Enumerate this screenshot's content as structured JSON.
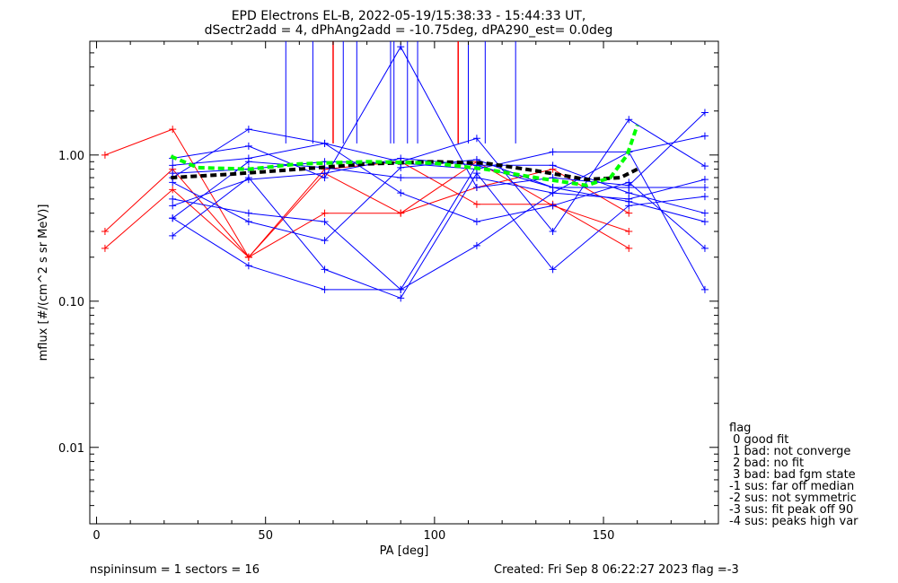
{
  "chart_data": {
    "type": "line",
    "title": "EPD Electrons EL-B, 2022-05-19/15:38:33 - 15:44:33 UT,",
    "subtitle": "dSectr2add = 4, dPhAng2add = -10.75deg, dPA290_est=   0.0deg",
    "xlabel": "PA [deg]",
    "ylabel": "mflux [#/(cm^2 s sr MeV)]",
    "xlim": [
      -2,
      184
    ],
    "ylim": [
      0.003,
      6
    ],
    "yscale": "log",
    "grid": false,
    "xticks": [
      0,
      50,
      100,
      150
    ],
    "xtick_labels": [
      "0",
      "50",
      "100",
      "150"
    ],
    "yticks": [
      0.01,
      0.1,
      1.0
    ],
    "ytick_labels": [
      "0.01",
      "0.10",
      "1.00"
    ],
    "colors": {
      "red": "#ff0000",
      "blue": "#0000ff",
      "black": "#000000",
      "green": "#00ff00"
    },
    "series": [
      {
        "color": "red",
        "x": [
          2.5,
          22.5,
          45,
          67.5,
          90,
          112.5,
          135,
          157.5
        ],
        "y": [
          1.0,
          1.5,
          0.2,
          0.75,
          0.4,
          0.6,
          0.8,
          0.4
        ]
      },
      {
        "color": "red",
        "x": [
          2.5,
          22.5,
          45,
          67.5,
          90,
          112.5,
          135,
          157.5
        ],
        "y": [
          0.3,
          0.8,
          0.2,
          0.4,
          0.4,
          0.9,
          0.45,
          0.3
        ]
      },
      {
        "color": "red",
        "x": [
          2.5,
          22.5,
          45,
          67.5,
          90,
          112.5,
          135,
          157.5
        ],
        "y": [
          0.23,
          0.58,
          0.2,
          0.8,
          0.9,
          0.46,
          0.46,
          0.23
        ]
      },
      {
        "color": "blue",
        "x": [
          22.5,
          45,
          67.5,
          90,
          112.5,
          135,
          157.5,
          180
        ],
        "y": [
          0.7,
          1.5,
          1.2,
          0.9,
          1.3,
          0.3,
          1.75,
          0.84
        ]
      },
      {
        "color": "blue",
        "x": [
          22.5,
          45,
          67.5,
          90,
          112.5,
          135,
          157.5,
          180
        ],
        "y": [
          0.95,
          1.15,
          0.7,
          5.5,
          0.6,
          0.7,
          0.62,
          1.95
        ]
      },
      {
        "color": "blue",
        "x": [
          22.5,
          45,
          67.5,
          90,
          112.5,
          135,
          157.5,
          180
        ],
        "y": [
          0.5,
          0.4,
          0.35,
          0.12,
          0.24,
          0.55,
          1.05,
          0.12
        ]
      },
      {
        "color": "blue",
        "x": [
          22.5,
          45,
          67.5,
          90,
          112.5,
          135,
          157.5,
          180
        ],
        "y": [
          0.28,
          0.7,
          0.165,
          0.105,
          0.75,
          0.165,
          0.45,
          0.52
        ]
      },
      {
        "color": "blue",
        "x": [
          22.5,
          45,
          67.5,
          90,
          112.5,
          135,
          157.5,
          180
        ],
        "y": [
          0.37,
          0.175,
          0.12,
          0.12,
          0.85,
          0.85,
          0.55,
          0.4
        ]
      },
      {
        "color": "blue",
        "x": [
          22.5,
          45,
          67.5,
          90,
          112.5,
          135,
          157.5,
          180
        ],
        "y": [
          0.85,
          0.95,
          1.2,
          0.55,
          0.35,
          0.45,
          0.65,
          0.23
        ]
      },
      {
        "color": "blue",
        "x": [
          22.5,
          45,
          67.5,
          90,
          112.5,
          135,
          157.5,
          180
        ],
        "y": [
          0.65,
          0.35,
          0.26,
          0.82,
          0.93,
          0.6,
          0.48,
          0.35
        ]
      },
      {
        "color": "blue",
        "x": [
          22.5,
          45,
          67.5,
          90,
          112.5,
          135,
          157.5,
          180
        ],
        "y": [
          0.75,
          0.8,
          0.9,
          0.88,
          0.8,
          1.05,
          1.05,
          1.35
        ]
      },
      {
        "color": "blue",
        "x": [
          22.5,
          45,
          67.5,
          90,
          112.5,
          135,
          157.5,
          180
        ],
        "y": [
          0.45,
          0.68,
          0.75,
          0.95,
          0.85,
          0.6,
          0.6,
          0.6
        ]
      },
      {
        "color": "blue",
        "x": [
          22.5,
          45,
          67.5,
          90,
          112.5,
          135,
          157.5,
          180
        ],
        "y": [
          0.37,
          0.9,
          0.82,
          0.7,
          0.7,
          0.55,
          0.5,
          0.68
        ]
      },
      {
        "color": "black",
        "dash": true,
        "x": [
          22,
          40,
          60,
          80,
          100,
          115,
          130,
          145,
          155,
          160
        ],
        "y": [
          0.7,
          0.74,
          0.8,
          0.87,
          0.9,
          0.88,
          0.78,
          0.68,
          0.7,
          0.8
        ]
      },
      {
        "color": "green",
        "dash": true,
        "x": [
          22,
          30,
          45,
          60,
          80,
          100,
          115,
          130,
          145,
          152,
          157,
          160
        ],
        "y": [
          0.98,
          0.82,
          0.8,
          0.87,
          0.9,
          0.88,
          0.8,
          0.7,
          0.62,
          0.7,
          1.0,
          1.6
        ]
      }
    ],
    "vlines": [
      {
        "color": "blue",
        "x": [
          56,
          64,
          73,
          77,
          87,
          88,
          92,
          95,
          110,
          115,
          124
        ]
      },
      {
        "color": "red",
        "x": [
          70,
          107
        ]
      }
    ]
  },
  "legend": {
    "title": "flag",
    "entries": [
      " 0 good fit",
      " 1 bad: not converge",
      " 2 bad: no fit",
      " 3 bad: bad fgm state",
      "-1 sus: far off median",
      "-2 sus: not symmetric",
      "-3 sus: fit peak off 90",
      "-4 sus: peaks high var"
    ]
  },
  "footer": {
    "left": "nspininsum =  1  sectors = 16",
    "right": "Created: Fri Sep  8 06:22:27 2023   flag =-3"
  }
}
